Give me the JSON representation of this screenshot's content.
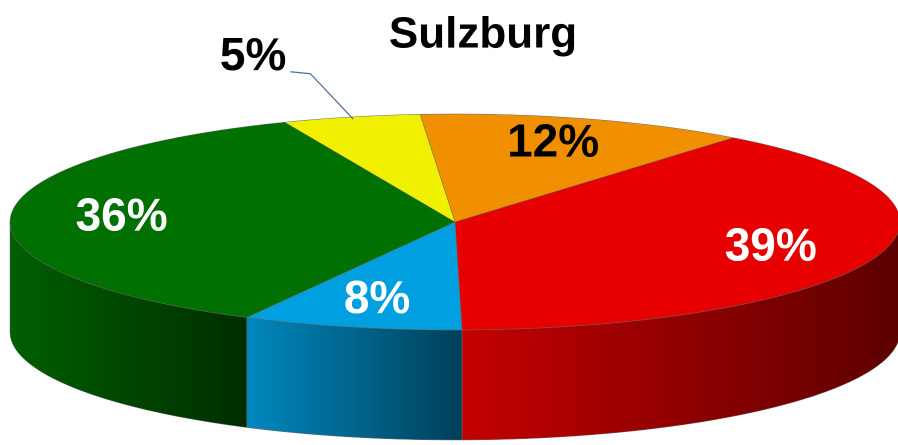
{
  "chart_data": {
    "type": "pie",
    "title": "Sulzburg",
    "values": [
      12,
      39,
      8,
      36,
      5
    ],
    "value_labels": [
      "12%",
      "39%",
      "8%",
      "36%",
      "5%"
    ],
    "colors": [
      "#f09000",
      "#e60000",
      "#00a0e0",
      "#007000",
      "#f0f000"
    ]
  }
}
